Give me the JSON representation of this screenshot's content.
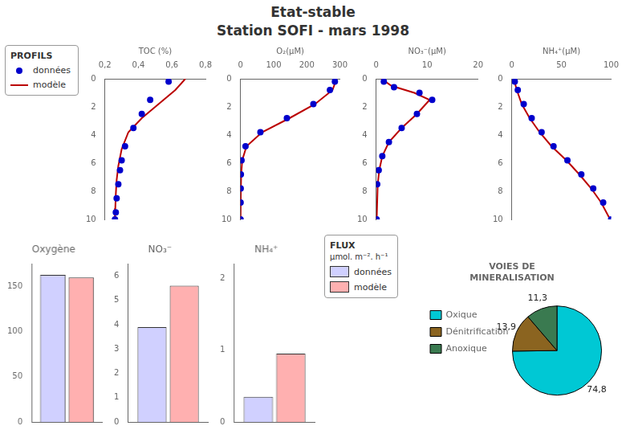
{
  "title": "Etat-stable",
  "subtitle": "Station SOFI - mars 1998",
  "chart_data": [
    {
      "type": "scatter",
      "xlabel": "TOC (%)",
      "xlim": [
        0.2,
        0.8
      ],
      "xticks": [
        {
          "value": 0.2,
          "label": "0,2"
        },
        {
          "value": 0.4,
          "label": "0,4"
        },
        {
          "value": 0.6,
          "label": "0,6"
        },
        {
          "value": 0.8,
          "label": "0,8"
        }
      ],
      "ylim": [
        10,
        0
      ],
      "yticks": [
        0,
        2,
        4,
        6,
        8,
        10
      ],
      "grid": false,
      "legend": "left",
      "annotations": [
        "PROFILS"
      ],
      "series": [
        {
          "name": "données",
          "color": "#0000cc",
          "marker": "circle",
          "line_style": "none",
          "x": [
            0.58,
            0.47,
            0.42,
            0.37,
            0.32,
            0.3,
            0.29,
            0.28,
            0.27,
            0.265,
            0.26
          ],
          "values": [
            0.2,
            1.5,
            2.5,
            3.5,
            4.8,
            5.8,
            6.5,
            7.5,
            8.5,
            9.5,
            10.0
          ]
        },
        {
          "name": "modèle",
          "color": "#bb0000",
          "marker": "none",
          "line_style": "solid",
          "x": [
            0.68,
            0.62,
            0.52,
            0.42,
            0.34,
            0.3,
            0.28,
            0.27,
            0.265,
            0.262,
            0.26
          ],
          "values": [
            0.0,
            0.8,
            1.8,
            2.8,
            3.8,
            5.0,
            6.2,
            7.2,
            8.2,
            9.2,
            10.0
          ]
        }
      ]
    },
    {
      "type": "scatter",
      "xlabel": "O₂(μM)",
      "xlim": [
        0,
        300
      ],
      "xticks": [
        0,
        100,
        200,
        300
      ],
      "ylim": [
        10,
        0
      ],
      "yticks": [
        0,
        2,
        4,
        6,
        8,
        10
      ],
      "grid": false,
      "series": [
        {
          "name": "données",
          "color": "#0000cc",
          "marker": "circle",
          "line_style": "none",
          "x": [
            285,
            270,
            220,
            140,
            60,
            15,
            3,
            1,
            0.5,
            0.2,
            0.1
          ],
          "values": [
            0.2,
            0.8,
            1.8,
            2.8,
            3.8,
            4.8,
            5.8,
            6.8,
            7.8,
            8.8,
            10.0
          ]
        },
        {
          "name": "modèle",
          "color": "#bb0000",
          "marker": "none",
          "line_style": "solid",
          "x": [
            290,
            278,
            225,
            148,
            65,
            18,
            5,
            2,
            1,
            0.5,
            0.1
          ],
          "values": [
            0.0,
            0.8,
            1.8,
            2.8,
            3.8,
            4.8,
            5.8,
            6.8,
            7.8,
            8.8,
            10.0
          ]
        }
      ]
    },
    {
      "type": "scatter",
      "xlabel": "NO₃⁻(μM)",
      "xlim": [
        0,
        20
      ],
      "xticks": [
        0,
        10,
        20
      ],
      "ylim": [
        10,
        0
      ],
      "yticks": [
        0,
        2,
        4,
        6,
        8,
        10
      ],
      "grid": false,
      "series": [
        {
          "name": "données",
          "color": "#0000cc",
          "marker": "circle",
          "line_style": "none",
          "x": [
            1.5,
            3.5,
            8.5,
            11.0,
            8.0,
            5.0,
            2.5,
            1.2,
            0.5,
            0.2,
            0.1
          ],
          "values": [
            0.2,
            0.6,
            1.0,
            1.5,
            2.5,
            3.5,
            4.5,
            5.5,
            6.5,
            7.5,
            10.0
          ]
        },
        {
          "name": "modèle",
          "color": "#bb0000",
          "marker": "none",
          "line_style": "solid",
          "x": [
            1.0,
            3.0,
            7.5,
            10.5,
            8.0,
            5.0,
            2.5,
            1.2,
            0.6,
            0.3,
            0.1
          ],
          "values": [
            0.0,
            0.5,
            1.0,
            1.5,
            2.5,
            3.5,
            4.5,
            5.5,
            6.5,
            7.5,
            10.0
          ]
        }
      ]
    },
    {
      "type": "scatter",
      "xlabel": "NH₄⁺(μM)",
      "xlim": [
        0,
        100
      ],
      "xticks": [
        0,
        50,
        100
      ],
      "ylim": [
        10,
        0
      ],
      "yticks": [
        0,
        2,
        4,
        6,
        8,
        10
      ],
      "grid": false,
      "series": [
        {
          "name": "données",
          "color": "#0000cc",
          "marker": "circle",
          "line_style": "none",
          "x": [
            3,
            6,
            12,
            20,
            30,
            42,
            56,
            70,
            82,
            92,
            100
          ],
          "values": [
            0.2,
            0.8,
            1.8,
            2.8,
            3.8,
            4.8,
            5.8,
            6.8,
            7.8,
            8.8,
            10.0
          ]
        },
        {
          "name": "modèle",
          "color": "#bb0000",
          "marker": "none",
          "line_style": "solid",
          "x": [
            2,
            5,
            10,
            18,
            28,
            40,
            55,
            68,
            80,
            90,
            99
          ],
          "values": [
            0.0,
            0.8,
            1.8,
            2.8,
            3.8,
            4.8,
            5.8,
            6.8,
            7.8,
            8.8,
            10.0
          ]
        }
      ]
    },
    {
      "type": "bar",
      "title": "Oxygène",
      "categories": [
        null
      ],
      "ylim": [
        0,
        175
      ],
      "yticks": [
        0,
        50,
        100,
        150
      ],
      "grid": false,
      "tick_labels": "y",
      "series": [
        {
          "name": "données",
          "color": "#d0d0ff",
          "values": [
            163
          ]
        },
        {
          "name": "modèle",
          "color": "#ffb0b0",
          "values": [
            160
          ]
        }
      ]
    },
    {
      "type": "bar",
      "title": "NO₃⁻",
      "categories": [
        null
      ],
      "ylim": [
        0,
        6.5
      ],
      "yticks": [
        0,
        1,
        2,
        3,
        4,
        5,
        6
      ],
      "grid": false,
      "tick_labels": "y",
      "series": [
        {
          "name": "données",
          "color": "#d0d0ff",
          "values": [
            3.9
          ]
        },
        {
          "name": "modèle",
          "color": "#ffb0b0",
          "values": [
            5.6
          ]
        }
      ]
    },
    {
      "type": "bar",
      "title": "NH₄⁺",
      "categories": [
        null
      ],
      "ylim": [
        0,
        2.2
      ],
      "yticks": [
        0,
        1,
        2
      ],
      "grid": false,
      "tick_labels": "y",
      "legend": "right",
      "annotations": [
        "FLUX",
        "μmol. m⁻². h⁻¹"
      ],
      "series": [
        {
          "name": "données",
          "color": "#d0d0ff",
          "values": [
            0.35
          ]
        },
        {
          "name": "modèle",
          "color": "#ffb0b0",
          "values": [
            0.95
          ]
        }
      ]
    },
    {
      "type": "pie",
      "title": "VOIES DE\nMINERALISATION",
      "categories": [
        "Oxique",
        "Dénitrification",
        "Anoxique"
      ],
      "values": [
        74.8,
        13.9,
        11.3
      ],
      "value_labels": [
        "74,8",
        "13,9",
        "11,3"
      ],
      "colors": [
        "#00c8d4",
        "#8B6420",
        "#3a7a50"
      ],
      "data_labels": true,
      "legend": "left"
    }
  ]
}
